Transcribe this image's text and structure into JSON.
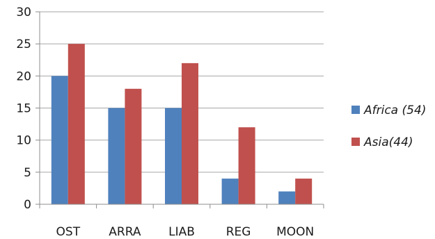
{
  "chart_data": {
    "type": "bar",
    "categories": [
      "OST",
      "ARRA",
      "LIAB",
      "REG",
      "MOON"
    ],
    "series": [
      {
        "name": "Africa (54)",
        "values": [
          20,
          15,
          15,
          4,
          2
        ],
        "color": "#4f81bd"
      },
      {
        "name": "Asia(44)",
        "values": [
          25,
          18,
          22,
          12,
          4
        ],
        "color": "#c0504d"
      }
    ],
    "ylim": [
      0,
      30
    ],
    "yticks": [
      0,
      5,
      10,
      15,
      20,
      25,
      30
    ],
    "grid": true,
    "gridline_color": "#a6a6a6",
    "legend": "right"
  }
}
